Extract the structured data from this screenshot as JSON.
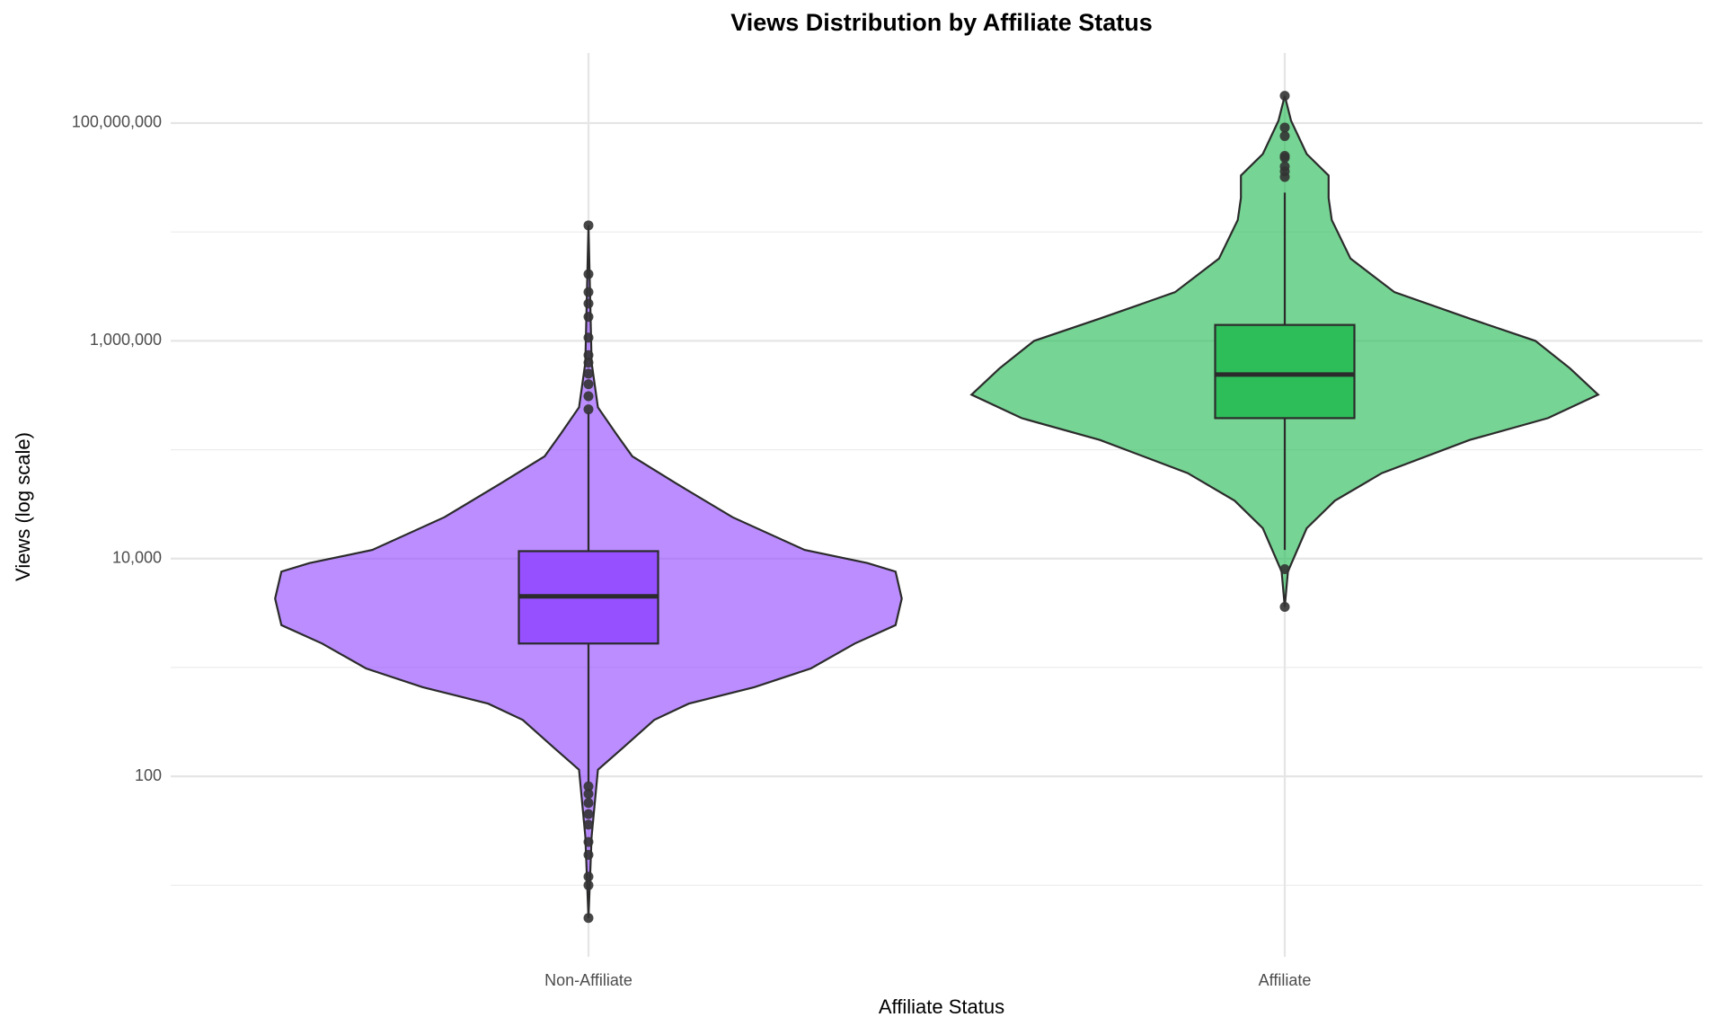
{
  "chart_data": {
    "type": "violin",
    "title": "Views Distribution by Affiliate Status",
    "x_label": "Affiliate Status",
    "y_label": "Views (log scale)",
    "log_scale": true,
    "grid": true,
    "categories": [
      "Non-Affiliate",
      "Affiliate"
    ],
    "ylim": [
      2.2,
      440000000
    ],
    "yticks": [
      {
        "value": 100,
        "label": "100"
      },
      {
        "value": 10000,
        "label": "10,000"
      },
      {
        "value": 1000000,
        "label": "1,000,000"
      },
      {
        "value": 100000000,
        "label": "100,000,000"
      }
    ],
    "minor_yticks": [
      10,
      1000,
      100000,
      10000000
    ],
    "series": [
      {
        "name": "Non-Affiliate",
        "color": "#9650ff",
        "violin_y": [
          5,
          28,
          115,
          183,
          330,
          465,
          660,
          980,
          1660,
          2450,
          4300,
          7600,
          9100,
          12000,
          24000,
          49000,
          87000,
          138000,
          245000,
          630000,
          11500000
        ],
        "violin_density": [
          0,
          0.01,
          0.03,
          0.11,
          0.21,
          0.32,
          0.53,
          0.71,
          0.85,
          0.98,
          1,
          0.98,
          0.89,
          0.69,
          0.46,
          0.28,
          0.14,
          0.09,
          0.03,
          0.01,
          0
        ],
        "q1": 1660,
        "median": 4500,
        "q3": 11700,
        "whisker_low": 87,
        "whisker_high": 220000,
        "outliers": [
          11500000,
          4100000,
          2800000,
          2200000,
          1660000,
          1070000,
          740000,
          630000,
          500000,
          400000,
          310000,
          235000,
          81,
          69,
          57,
          45,
          36,
          25,
          19,
          12,
          10,
          5
        ]
      },
      {
        "name": "Affiliate",
        "color": "#2dbe5a",
        "violin_y": [
          3600,
          7600,
          19000,
          34000,
          61000,
          123000,
          195000,
          320000,
          560000,
          1000000,
          1600000,
          2800000,
          5700000,
          12900000,
          20500000,
          33000000,
          52000000,
          105000000,
          178000000
        ],
        "violin_density": [
          0,
          0.01,
          0.07,
          0.16,
          0.31,
          0.59,
          0.84,
          1,
          0.91,
          0.8,
          0.59,
          0.35,
          0.21,
          0.15,
          0.14,
          0.14,
          0.07,
          0.02,
          0
        ],
        "q1": 195000,
        "median": 490000,
        "q3": 1400000,
        "whisker_low": 12000,
        "whisker_high": 23000000,
        "outliers": [
          178000000,
          91000000,
          76000000,
          50000000,
          48000000,
          40000000,
          36000000,
          32000000,
          8000,
          3600
        ]
      }
    ]
  }
}
